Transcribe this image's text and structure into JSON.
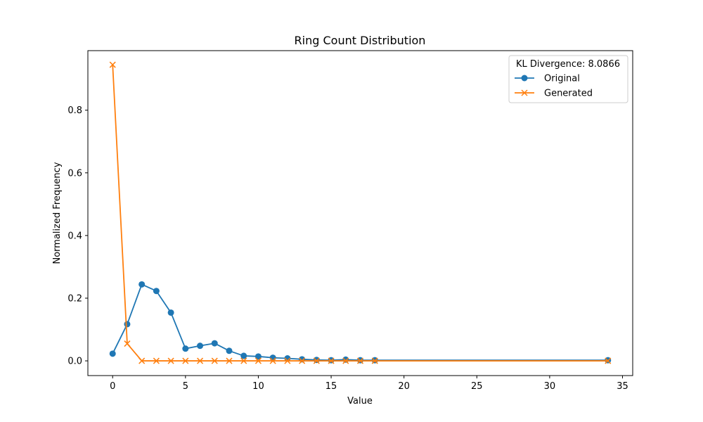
{
  "chart_data": {
    "type": "line",
    "title": "Ring Count Distribution",
    "xlabel": "Value",
    "ylabel": "Normalized Frequency",
    "xlim": [
      -1.7,
      35.7
    ],
    "ylim": [
      -0.047,
      0.99
    ],
    "xticks": [
      0,
      5,
      10,
      15,
      20,
      25,
      30,
      35
    ],
    "yticks": [
      0.0,
      0.2,
      0.4,
      0.6,
      0.8
    ],
    "grid": false,
    "legend": {
      "title": "KL Divergence: 8.0866",
      "placement": "top-right"
    },
    "series": [
      {
        "name": "Original",
        "color": "#1f77b4",
        "marker": "circle",
        "x": [
          0,
          1,
          2,
          3,
          4,
          5,
          6,
          7,
          8,
          9,
          10,
          11,
          12,
          13,
          14,
          15,
          16,
          17,
          18,
          34
        ],
        "y": [
          0.023,
          0.117,
          0.244,
          0.223,
          0.154,
          0.039,
          0.048,
          0.056,
          0.032,
          0.016,
          0.014,
          0.01,
          0.008,
          0.005,
          0.003,
          0.002,
          0.004,
          0.002,
          0.002,
          0.002
        ]
      },
      {
        "name": "Generated",
        "color": "#ff7f0e",
        "marker": "x",
        "x": [
          0,
          1,
          2,
          3,
          4,
          5,
          6,
          7,
          8,
          9,
          10,
          11,
          12,
          13,
          14,
          15,
          16,
          17,
          18,
          34
        ],
        "y": [
          0.945,
          0.055,
          0.0,
          0.0,
          0.0,
          0.0,
          0.0,
          0.0,
          0.0,
          0.0,
          0.0,
          0.0,
          0.0,
          0.0,
          0.0,
          0.0,
          0.0,
          0.0,
          0.0,
          0.0
        ]
      }
    ]
  }
}
